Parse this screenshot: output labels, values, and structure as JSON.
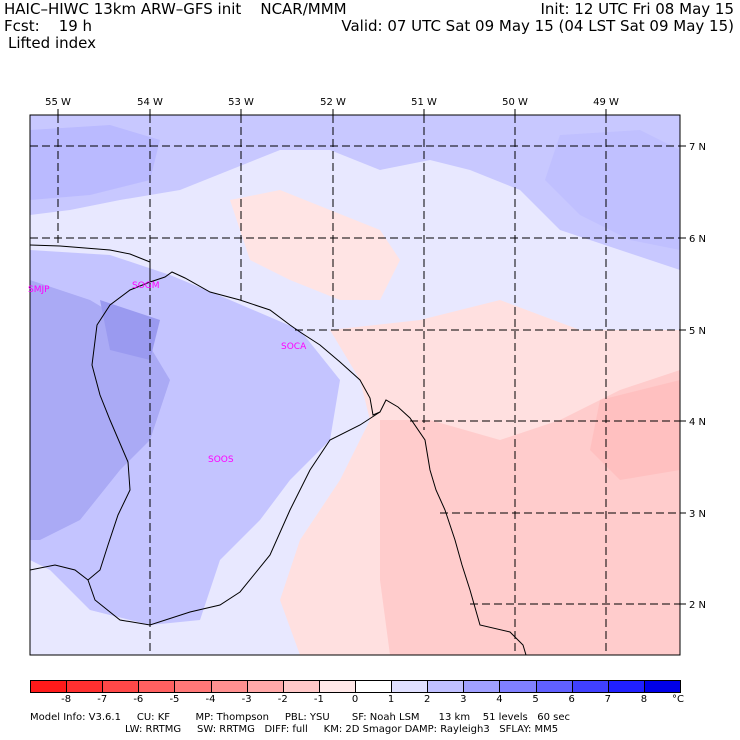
{
  "header": {
    "title_left": "HAIC–HIWC 13km ARW–GFS init    NCAR/MMM",
    "fcst": "Fcst:    19 h",
    "field": "Lifted index",
    "init": "Init: 12 UTC Fri 08 May 15",
    "valid": "Valid: 07 UTC Sat 09 May 15 (04 LST Sat 09 May 15)"
  },
  "map": {
    "lon_labels": [
      "55 W",
      "54 W",
      "53 W",
      "52 W",
      "51 W",
      "50 W",
      "49 W"
    ],
    "lat_labels": [
      "7 N",
      "6 N",
      "5 N",
      "4 N",
      "3 N",
      "2 N"
    ],
    "stations": [
      "SMJP",
      "SOGM",
      "SOCA",
      "SOOS"
    ],
    "station_color": "#ff00ff"
  },
  "colorbar": {
    "labels": [
      "-8",
      "-7",
      "-6",
      "-5",
      "-4",
      "-3",
      "-2",
      "-1",
      "0",
      "1",
      "2",
      "3",
      "4",
      "5",
      "6",
      "7",
      "8"
    ],
    "unit": "°C",
    "colors": [
      "#ff1a1a",
      "#ff3030",
      "#ff4848",
      "#ff6060",
      "#ff7878",
      "#ff9090",
      "#ffa8a8",
      "#ffc8c8",
      "#ffe8e8",
      "#ffffff",
      "#e0e0ff",
      "#c0c0ff",
      "#a0a0ff",
      "#8080ff",
      "#6060ff",
      "#4040ff",
      "#2020ff",
      "#0000e8"
    ]
  },
  "footer": {
    "line1": "Model Info: V3.6.1     CU: KF        MP: Thompson     PBL: YSU       SF: Noah LSM      13 km    51 levels   60 sec",
    "line2": "LW: RRTMG     SW: RRTMG   DIFF: full     KM: 2D Smagor DAMP: Rayleigh3   SFLAY: MM5"
  }
}
